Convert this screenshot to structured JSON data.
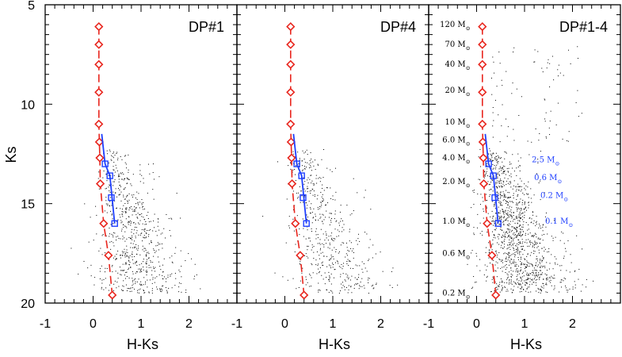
{
  "chart_data": {
    "type": "scatter",
    "xlabel": "H-Ks",
    "ylabel": "Ks",
    "xlim": [
      -1,
      3
    ],
    "ylim": [
      20,
      5
    ],
    "y_inverted": true,
    "x_ticks": [
      "-1",
      "0",
      "1",
      "2"
    ],
    "y_ticks": [
      "5",
      "10",
      "15",
      "20"
    ],
    "colors": {
      "isochrone_red": "#e8261e",
      "track_blue": "#1f3fff",
      "stars": "#000000"
    },
    "isochrone_red": {
      "style": "dashed line with diamond markers",
      "points": [
        {
          "x": 0.12,
          "y": 6.1
        },
        {
          "x": 0.12,
          "y": 7.0
        },
        {
          "x": 0.12,
          "y": 8.0
        },
        {
          "x": 0.12,
          "y": 9.4
        },
        {
          "x": 0.12,
          "y": 11.0
        },
        {
          "x": 0.13,
          "y": 11.9
        },
        {
          "x": 0.14,
          "y": 12.7
        },
        {
          "x": 0.15,
          "y": 14.0
        },
        {
          "x": 0.22,
          "y": 16.0
        },
        {
          "x": 0.32,
          "y": 17.6
        },
        {
          "x": 0.4,
          "y": 19.6
        }
      ]
    },
    "track_blue": {
      "style": "solid line with square markers",
      "line": [
        {
          "x": 0.18,
          "y": 11.5
        },
        {
          "x": 0.25,
          "y": 13.0
        },
        {
          "x": 0.35,
          "y": 13.6
        },
        {
          "x": 0.45,
          "y": 16.0
        }
      ],
      "markers": [
        {
          "x": 0.25,
          "y": 13.0
        },
        {
          "x": 0.35,
          "y": 13.6
        },
        {
          "x": 0.38,
          "y": 14.7
        },
        {
          "x": 0.45,
          "y": 16.0
        }
      ]
    },
    "panels": [
      {
        "title": "DP#1",
        "star_count": 700
      },
      {
        "title": "DP#4",
        "star_count": 520
      },
      {
        "title": "DP#1-4",
        "star_count": 1300
      }
    ],
    "mass_labels_black": [
      {
        "label": "120 M",
        "y": 6.0
      },
      {
        "label": "70 M",
        "y": 7.0
      },
      {
        "label": "40 M",
        "y": 8.0
      },
      {
        "label": "20 M",
        "y": 9.3
      },
      {
        "label": "10 M",
        "y": 10.9
      },
      {
        "label": "6.0 M",
        "y": 11.8
      },
      {
        "label": "4.0 M",
        "y": 12.7
      },
      {
        "label": "2.0 M",
        "y": 13.9
      },
      {
        "label": "1.0 M",
        "y": 15.9
      },
      {
        "label": "0.6 M",
        "y": 17.5
      },
      {
        "label": "0.2 M",
        "y": 19.5
      }
    ],
    "mass_labels_blue": [
      {
        "label": "2.5 M",
        "y": 12.8
      },
      {
        "label": "0.6 M",
        "y": 13.7
      },
      {
        "label": "0.2 M",
        "y": 14.6
      },
      {
        "label": "0.1 M",
        "y": 15.9
      }
    ],
    "solar_symbol": "⊙"
  }
}
